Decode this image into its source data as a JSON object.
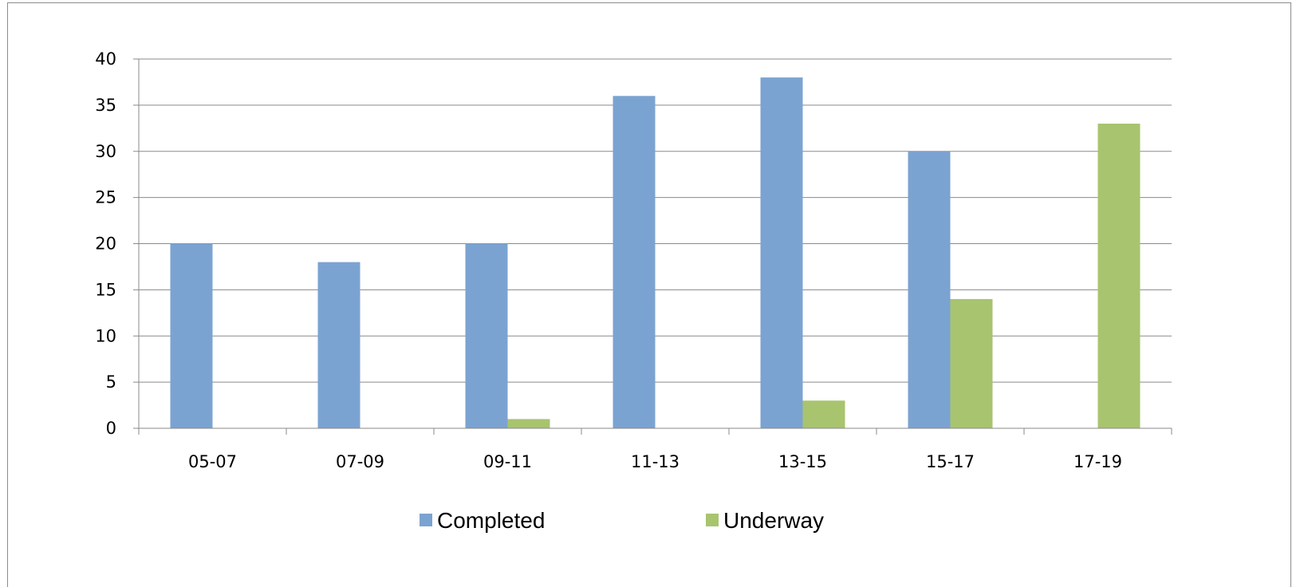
{
  "chart_data": {
    "type": "bar",
    "title": "",
    "xlabel": "",
    "ylabel": "",
    "categories": [
      "05-07",
      "07-09",
      "09-11",
      "11-13",
      "13-15",
      "15-17",
      "17-19"
    ],
    "series": [
      {
        "name": "Completed",
        "values": [
          20,
          18,
          20,
          36,
          38,
          30,
          0
        ],
        "color": "#7ba3d1"
      },
      {
        "name": "Underway",
        "values": [
          0,
          0,
          1,
          0,
          3,
          14,
          33
        ],
        "color": "#a8c46f"
      }
    ],
    "ylim": [
      0,
      40
    ],
    "yticks": [
      "0",
      "5",
      "10",
      "15",
      "20",
      "25",
      "30",
      "35",
      "40"
    ],
    "grid": true,
    "legend_position": "bottom"
  }
}
